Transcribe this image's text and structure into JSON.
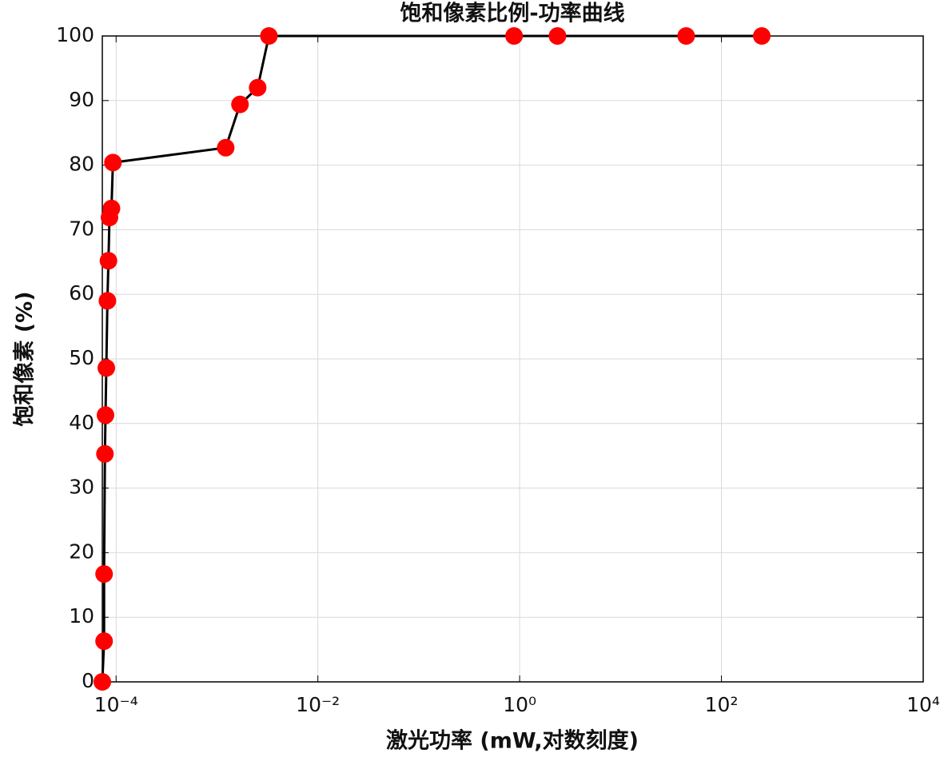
{
  "chart_data": {
    "type": "line",
    "title": "饱和像素比例-功率曲线",
    "xlabel": "激光功率 (mW,对数刻度)",
    "ylabel": "饱和像素 (%)",
    "xscale": "log",
    "grid": true,
    "color": "#000000",
    "marker_color": "#ff0000",
    "x": [
      7.3e-05,
      7.6e-05,
      7.6e-05,
      7.75e-05,
      7.85e-05,
      8e-05,
      8.2e-05,
      8.4e-05,
      8.6e-05,
      9e-05,
      9.3e-05,
      0.00122,
      0.00169,
      0.00253,
      0.00327,
      0.88,
      2.37,
      44.7,
      251
    ],
    "values": [
      0,
      6.3,
      16.7,
      35.3,
      41.3,
      48.6,
      59.0,
      65.2,
      71.9,
      73.3,
      80.4,
      82.7,
      89.4,
      92.0,
      100,
      100,
      100,
      100,
      100
    ],
    "xlim": [
      7.3e-05,
      10000
    ],
    "xticks": [
      {
        "value": 0.0001,
        "label": "10⁻⁴"
      },
      {
        "value": 0.01,
        "label": "10⁻²"
      },
      {
        "value": 1,
        "label": "10⁰"
      },
      {
        "value": 100,
        "label": "10²"
      },
      {
        "value": 10000,
        "label": "10⁴"
      }
    ],
    "ylim": [
      0,
      100
    ],
    "yticks": [
      0,
      10,
      20,
      30,
      40,
      50,
      60,
      70,
      80,
      90,
      100
    ]
  }
}
